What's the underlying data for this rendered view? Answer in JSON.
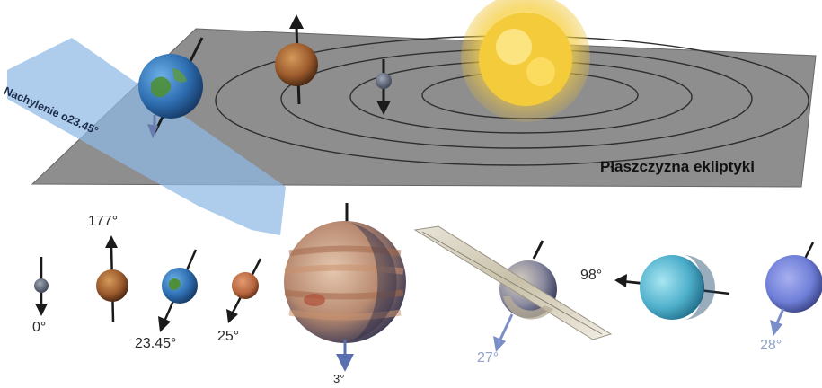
{
  "labels": {
    "ecliptic_plane": "Płaszczyzna ekliptyki",
    "earth_tilt": "Nachylenie o23.45°"
  },
  "planets": [
    {
      "name": "Merkury",
      "tilt": "0°"
    },
    {
      "name": "Wenus",
      "tilt": "177°"
    },
    {
      "name": "Ziemia",
      "tilt": "23.45°"
    },
    {
      "name": "Mars",
      "tilt": "25°"
    },
    {
      "name": "Jowisz",
      "tilt": "3°"
    },
    {
      "name": "Saturn",
      "tilt": "27°"
    },
    {
      "name": "Uran",
      "tilt": "98°"
    },
    {
      "name": "Neptun",
      "tilt": "28°"
    }
  ],
  "colors": {
    "plane": "#8c8c8c",
    "tilt_plane": "#8fb9e3",
    "sun": "#f6d24a",
    "earth": "#2f6fb3",
    "mars": "#b5643c",
    "venus": "#9c5a2c",
    "uranus": "#6fc6dc",
    "neptune": "#6f7fd8"
  }
}
